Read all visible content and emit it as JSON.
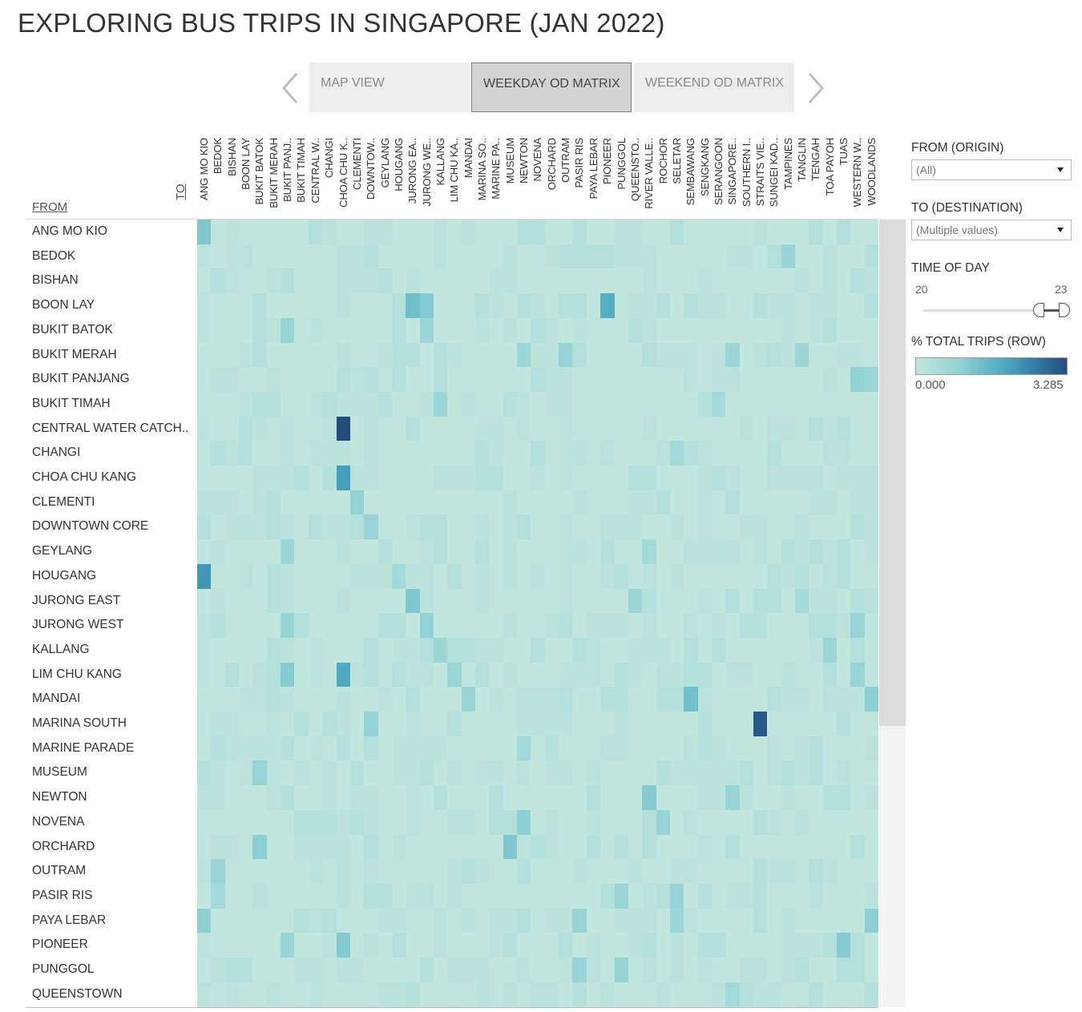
{
  "title": "EXPLORING BUS TRIPS IN SINGAPORE (JAN 2022)",
  "tabs": [
    {
      "label": "MAP VIEW",
      "active": false
    },
    {
      "label": "WEEKDAY OD MATRIX",
      "active": true
    },
    {
      "label": "WEEKEND OD MATRIX",
      "active": false
    }
  ],
  "icons": {
    "prev": "chevron-left-icon",
    "next": "chevron-right-icon",
    "dropdown": "caret-down-icon"
  },
  "matrix": {
    "to_label": "TO",
    "from_label": "FROM",
    "columns": [
      "ANG MO KIO",
      "BEDOK",
      "BISHAN",
      "BOON LAY",
      "BUKIT BATOK",
      "BUKIT MERAH",
      "BUKIT PANJ..",
      "BUKIT TIMAH",
      "CENTRAL W..",
      "CHANGI",
      "CHOA CHU K..",
      "CLEMENTI",
      "DOWNTOW..",
      "GEYLANG",
      "HOUGANG",
      "JURONG EA..",
      "JURONG WE..",
      "KALLANG",
      "LIM CHU KA..",
      "MANDAI",
      "MARINA SO..",
      "MARINE PA..",
      "MUSEUM",
      "NEWTON",
      "NOVENA",
      "ORCHARD",
      "OUTRAM",
      "PASIR RIS",
      "PAYA LEBAR",
      "PIONEER",
      "PUNGGOL",
      "QUEENSTO..",
      "RIVER VALLE..",
      "ROCHOR",
      "SELETAR",
      "SEMBAWANG",
      "SENGKANG",
      "SERANGOON",
      "SINGAPORE..",
      "SOUTHERN I..",
      "STRAITS VIE..",
      "SUNGEI KAD..",
      "TAMPINES",
      "TANGLIN",
      "TENGAH",
      "TOA PAYOH",
      "TUAS",
      "WESTERN W..",
      "WOODLANDS"
    ],
    "rows": [
      "ANG MO KIO",
      "BEDOK",
      "BISHAN",
      "BOON LAY",
      "BUKIT BATOK",
      "BUKIT MERAH",
      "BUKIT PANJANG",
      "BUKIT TIMAH",
      "CENTRAL WATER CATCH..",
      "CHANGI",
      "CHOA CHU KANG",
      "CLEMENTI",
      "DOWNTOWN CORE",
      "GEYLANG",
      "HOUGANG",
      "JURONG EAST",
      "JURONG WEST",
      "KALLANG",
      "LIM CHU KANG",
      "MANDAI",
      "MARINA SOUTH",
      "MARINE PARADE",
      "MUSEUM",
      "NEWTON",
      "NOVENA",
      "ORCHARD",
      "OUTRAM",
      "PASIR RIS",
      "PAYA LEBAR",
      "PIONEER",
      "PUNGGOL",
      "QUEENSTOWN"
    ],
    "color_low": "#c1e6dd",
    "color_high": "#244d7c",
    "highlights": [
      {
        "row": 0,
        "col": 0,
        "value": 1.2
      },
      {
        "row": 1,
        "col": 42,
        "value": 0.8
      },
      {
        "row": 3,
        "col": 15,
        "value": 1.4
      },
      {
        "row": 3,
        "col": 16,
        "value": 1.1
      },
      {
        "row": 3,
        "col": 29,
        "value": 1.8
      },
      {
        "row": 4,
        "col": 6,
        "value": 0.8
      },
      {
        "row": 4,
        "col": 16,
        "value": 0.7
      },
      {
        "row": 5,
        "col": 23,
        "value": 0.7
      },
      {
        "row": 5,
        "col": 26,
        "value": 0.8
      },
      {
        "row": 5,
        "col": 38,
        "value": 0.7
      },
      {
        "row": 5,
        "col": 43,
        "value": 0.7
      },
      {
        "row": 6,
        "col": 47,
        "value": 0.9
      },
      {
        "row": 6,
        "col": 48,
        "value": 0.7
      },
      {
        "row": 7,
        "col": 17,
        "value": 0.7
      },
      {
        "row": 7,
        "col": 37,
        "value": 0.6
      },
      {
        "row": 8,
        "col": 10,
        "value": 3.285
      },
      {
        "row": 9,
        "col": 34,
        "value": 0.6
      },
      {
        "row": 10,
        "col": 10,
        "value": 2.1
      },
      {
        "row": 11,
        "col": 11,
        "value": 0.9
      },
      {
        "row": 12,
        "col": 12,
        "value": 0.8
      },
      {
        "row": 13,
        "col": 6,
        "value": 0.7
      },
      {
        "row": 13,
        "col": 32,
        "value": 0.6
      },
      {
        "row": 14,
        "col": 0,
        "value": 2.2
      },
      {
        "row": 14,
        "col": 14,
        "value": 0.6
      },
      {
        "row": 15,
        "col": 15,
        "value": 1.2
      },
      {
        "row": 15,
        "col": 31,
        "value": 0.7
      },
      {
        "row": 15,
        "col": 43,
        "value": 0.6
      },
      {
        "row": 16,
        "col": 6,
        "value": 0.8
      },
      {
        "row": 16,
        "col": 16,
        "value": 0.9
      },
      {
        "row": 16,
        "col": 47,
        "value": 0.8
      },
      {
        "row": 17,
        "col": 17,
        "value": 0.7
      },
      {
        "row": 17,
        "col": 45,
        "value": 0.7
      },
      {
        "row": 18,
        "col": 6,
        "value": 1.1
      },
      {
        "row": 18,
        "col": 10,
        "value": 1.9
      },
      {
        "row": 18,
        "col": 18,
        "value": 0.7
      },
      {
        "row": 18,
        "col": 47,
        "value": 0.8
      },
      {
        "row": 19,
        "col": 19,
        "value": 0.8
      },
      {
        "row": 19,
        "col": 35,
        "value": 1.4
      },
      {
        "row": 19,
        "col": 48,
        "value": 1.0
      },
      {
        "row": 20,
        "col": 12,
        "value": 0.9
      },
      {
        "row": 20,
        "col": 40,
        "value": 3.1
      },
      {
        "row": 21,
        "col": 23,
        "value": 0.6
      },
      {
        "row": 22,
        "col": 4,
        "value": 0.8
      },
      {
        "row": 23,
        "col": 32,
        "value": 1.1
      },
      {
        "row": 23,
        "col": 38,
        "value": 0.8
      },
      {
        "row": 24,
        "col": 23,
        "value": 1.0
      },
      {
        "row": 24,
        "col": 33,
        "value": 0.8
      },
      {
        "row": 25,
        "col": 4,
        "value": 1.0
      },
      {
        "row": 25,
        "col": 22,
        "value": 1.2
      },
      {
        "row": 26,
        "col": 1,
        "value": 0.7
      },
      {
        "row": 27,
        "col": 1,
        "value": 0.6
      },
      {
        "row": 27,
        "col": 30,
        "value": 0.8
      },
      {
        "row": 27,
        "col": 34,
        "value": 0.8
      },
      {
        "row": 28,
        "col": 0,
        "value": 1.0
      },
      {
        "row": 28,
        "col": 27,
        "value": 0.8
      },
      {
        "row": 28,
        "col": 34,
        "value": 0.7
      },
      {
        "row": 28,
        "col": 48,
        "value": 1.0
      },
      {
        "row": 29,
        "col": 10,
        "value": 1.1
      },
      {
        "row": 29,
        "col": 6,
        "value": 0.8
      },
      {
        "row": 29,
        "col": 46,
        "value": 1.1
      },
      {
        "row": 30,
        "col": 27,
        "value": 0.8
      },
      {
        "row": 30,
        "col": 30,
        "value": 0.9
      },
      {
        "row": 31,
        "col": 38,
        "value": 0.6
      }
    ]
  },
  "filters": {
    "from_label": "FROM (ORIGIN)",
    "from_value": "(All)",
    "to_label": "TO (DESTINATION)",
    "to_value": "(Multiple values)",
    "time_label": "TIME OF DAY",
    "time_min": "20",
    "time_max": "23",
    "legend_label": "% TOTAL TRIPS (ROW)",
    "legend_min": "0.000",
    "legend_max": "3.285"
  }
}
